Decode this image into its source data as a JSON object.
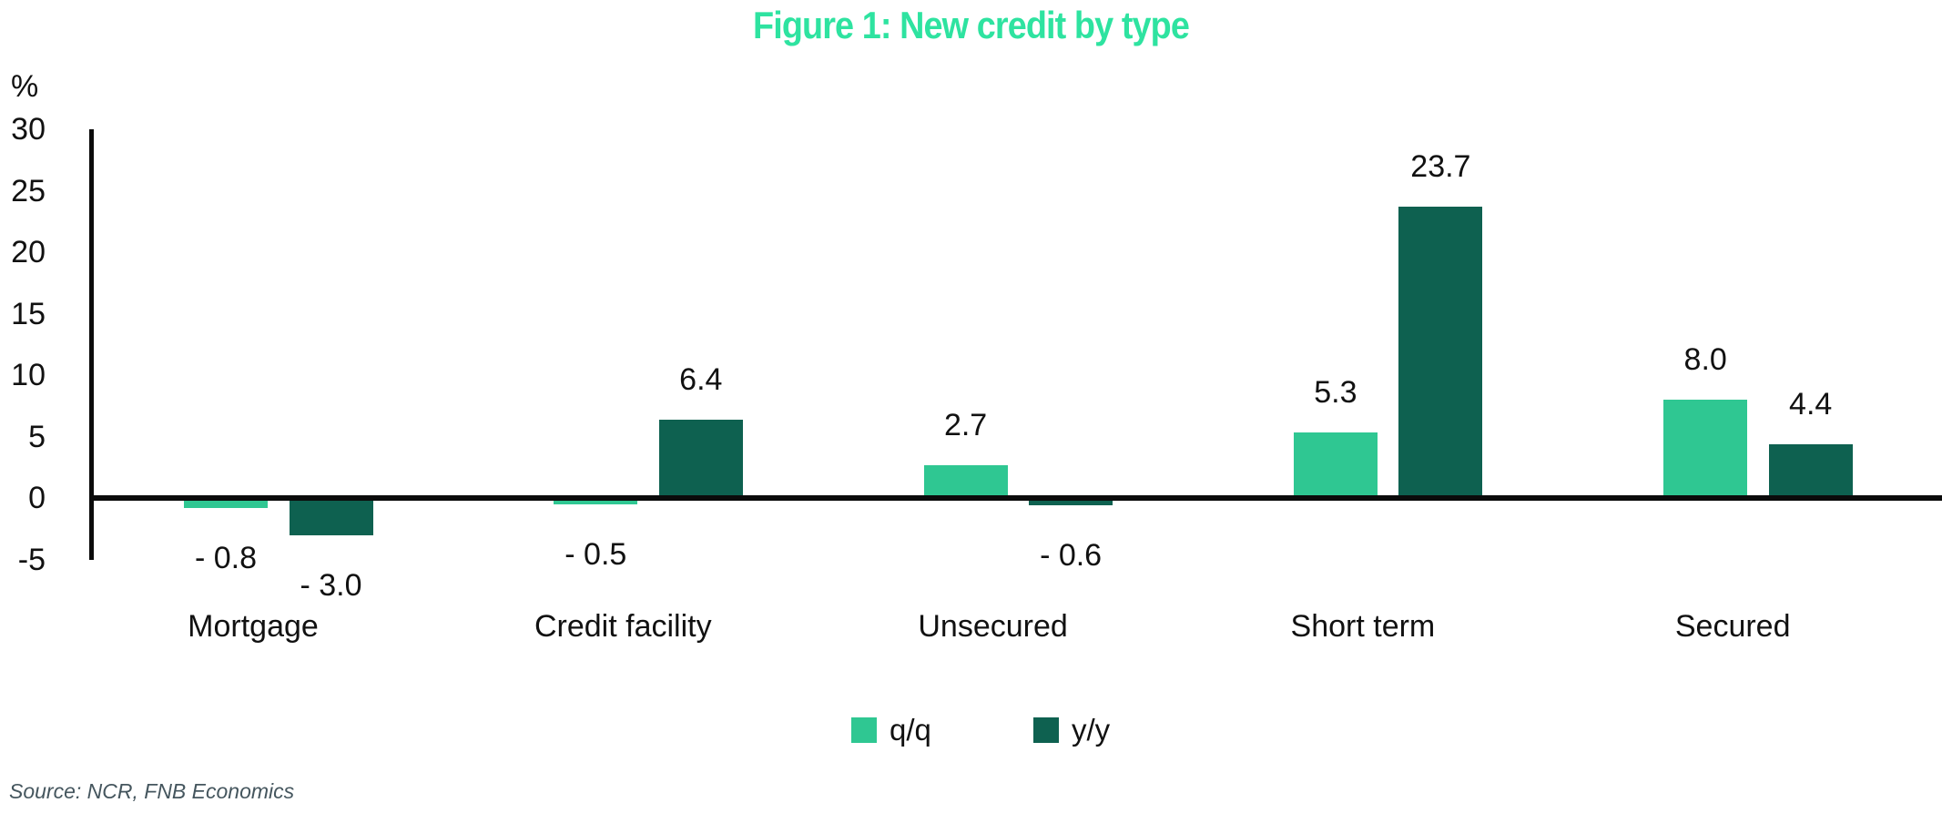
{
  "title": "Figure 1: New credit by type",
  "unit_label": "%",
  "source": "Source: NCR, FNB Economics",
  "colors": {
    "title": "#2EE3A0",
    "qq": "#2FC792",
    "yy": "#0E6150",
    "axis": "#0B0B0B",
    "text": "#111111",
    "source_text": "#45565E"
  },
  "legend": {
    "qq_label": "q/q",
    "yy_label": "y/y"
  },
  "chart_data": {
    "type": "bar",
    "title": "Figure 1: New credit by type",
    "xlabel": "",
    "ylabel": "%",
    "ylim": [
      -5,
      30
    ],
    "yticks": [
      30,
      25,
      20,
      15,
      10,
      5,
      0,
      -5
    ],
    "grid": false,
    "legend_position": "bottom",
    "categories": [
      "Mortgage",
      "Credit facility",
      "Unsecured",
      "Short term",
      "Secured"
    ],
    "series": [
      {
        "name": "q/q",
        "color": "#2FC792",
        "values": [
          -0.8,
          -0.5,
          2.7,
          5.3,
          8.0
        ],
        "labels": [
          "- 0.8",
          "- 0.5",
          "2.7",
          "5.3",
          "8.0"
        ]
      },
      {
        "name": "y/y",
        "color": "#0E6150",
        "values": [
          -3.0,
          6.4,
          -0.6,
          23.7,
          4.4
        ],
        "labels": [
          "- 3.0",
          "6.4",
          "- 0.6",
          "23.7",
          "4.4"
        ]
      }
    ]
  }
}
